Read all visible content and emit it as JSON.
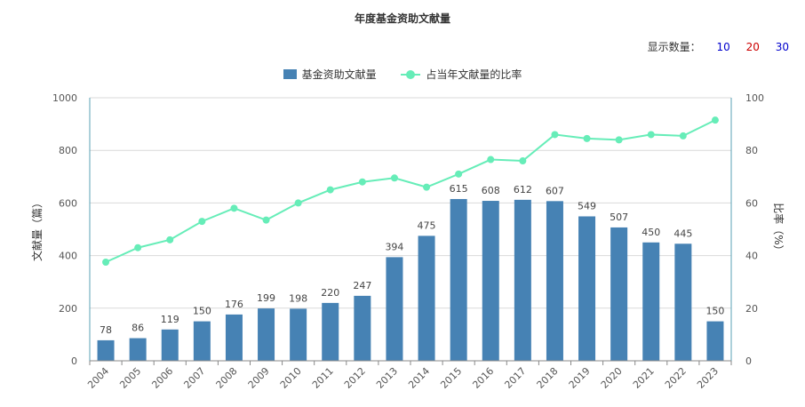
{
  "title": "年度基金资助文献量",
  "count_selector": {
    "label": "显示数量：",
    "options": [
      {
        "label": "10",
        "color": "#0000CC"
      },
      {
        "label": "20",
        "color": "#CC0000"
      },
      {
        "label": "30",
        "color": "#0000CC"
      }
    ]
  },
  "colors": {
    "bar": "#4682B4",
    "line": "#66EDB8",
    "grid": "#d9d9d9",
    "axis": "#5aa0b4"
  },
  "chart_data": {
    "type": "bar",
    "title": "年度基金资助文献量",
    "categories": [
      "2004",
      "2005",
      "2006",
      "2007",
      "2008",
      "2009",
      "2010",
      "2011",
      "2012",
      "2013",
      "2014",
      "2015",
      "2016",
      "2017",
      "2018",
      "2019",
      "2020",
      "2021",
      "2022",
      "2023"
    ],
    "series": [
      {
        "name": "基金资助文献量",
        "type": "bar",
        "axis": "left",
        "values": [
          78,
          86,
          119,
          150,
          176,
          199,
          198,
          220,
          247,
          394,
          475,
          615,
          608,
          612,
          607,
          549,
          507,
          450,
          445,
          150
        ]
      },
      {
        "name": "占当年文献量的比率",
        "type": "line",
        "axis": "right",
        "values": [
          37.5,
          43,
          46,
          53,
          58,
          53.5,
          60,
          65,
          68,
          69.5,
          66,
          71,
          76.5,
          76,
          86,
          84.5,
          84,
          86,
          85.5,
          91.5
        ]
      }
    ],
    "ylabel_left": "文献量（篇）",
    "ylabel_right": "比率（%）",
    "ylim_left": [
      0,
      1000
    ],
    "yticks_left": [
      0,
      200,
      400,
      600,
      800,
      1000
    ],
    "ylim_right": [
      0,
      100
    ],
    "yticks_right": [
      0,
      20,
      40,
      60,
      80,
      100
    ],
    "grid": true,
    "legend_position": "top-center"
  }
}
